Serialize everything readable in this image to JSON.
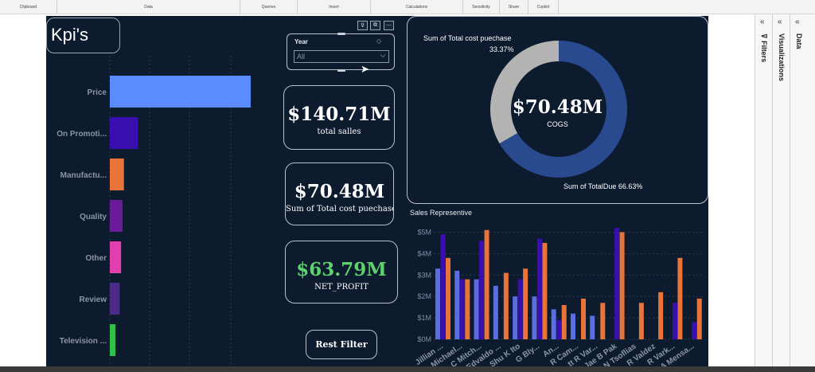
{
  "ribbon": {
    "groups": [
      "Clipboard",
      "Data",
      "Queries",
      "Insert",
      "Calculations",
      "Sensitivity",
      "Share",
      "Copilot"
    ]
  },
  "panes": {
    "filters": "Filters",
    "visualizations": "Visualizations",
    "data": "Data"
  },
  "report": {
    "title": "Kpi's",
    "slicer": {
      "title": "Year",
      "selected": "All"
    },
    "cards": [
      {
        "value": "$140.71M",
        "label": "total salles",
        "color": "#ffffff"
      },
      {
        "value": "$70.48M",
        "label": "Sum of Total cost puechase",
        "color": "#ffffff"
      },
      {
        "value": "$63.79M",
        "label": "NET_PROFIT",
        "color": "#5fd16e"
      }
    ],
    "rest_filter": "Rest Filter",
    "donut": {
      "label_cost": "Sum of Total cost puechase",
      "pct_cost": "33.37%",
      "label_due": "Sum of TotalDue 66.63%",
      "center_value": "$70.48M",
      "center_label": "COGS",
      "colors": {
        "cost": "#b3b3b3",
        "due": "#2a4a8f"
      }
    },
    "col_chart_title": "Sales Representive"
  },
  "chart_data": [
    {
      "type": "bar",
      "orientation": "horizontal",
      "categories": [
        "Price",
        "On Promoti...",
        "Manufactu...",
        "Quality",
        "Other",
        "Review",
        "Television ..."
      ],
      "values": [
        100,
        20,
        10,
        9,
        8,
        7,
        4
      ],
      "colors": [
        "#5b8cff",
        "#3a0fb0",
        "#e8743b",
        "#6a1b9a",
        "#e23fae",
        "#4b2a8a",
        "#2fbf4a"
      ]
    },
    {
      "type": "pie",
      "slices": [
        {
          "name": "Sum of Total cost puechase",
          "value": 33.37
        },
        {
          "name": "Sum of TotalDue",
          "value": 66.63
        }
      ]
    },
    {
      "type": "bar",
      "title": "Sales Representive",
      "categories": [
        "Jillian ...",
        "Michael...",
        "C Mitch...",
        "Edvaldo ...",
        "Shu K Ito",
        "G Bly...",
        "An...",
        "R Cam...",
        "tt R Var...",
        "Jae B Pak",
        "N Tsoflias",
        "R Valdez",
        "R Vark...",
        "A Mensa..."
      ],
      "series": [
        {
          "color": "#5b6ee1",
          "values": [
            3.3,
            3.2,
            2.8,
            2.5,
            2.0,
            2.0,
            1.4,
            1.2,
            1.1,
            0,
            0,
            0,
            0,
            0
          ]
        },
        {
          "color": "#3a0fb0",
          "values": [
            4.9,
            2.8,
            4.6,
            0,
            2.8,
            4.7,
            0.9,
            0,
            0,
            5.2,
            0,
            0,
            1.7,
            0.8
          ]
        },
        {
          "color": "#e8743b",
          "values": [
            3.8,
            2.8,
            5.1,
            3.1,
            3.3,
            4.5,
            1.6,
            1.9,
            1.7,
            5.0,
            1.7,
            2.2,
            3.8,
            1.9
          ]
        }
      ],
      "yticks": [
        "$0M",
        "$1M",
        "$2M",
        "$3M",
        "$4M",
        "$5M"
      ],
      "ylim": [
        0,
        5.5
      ]
    }
  ]
}
